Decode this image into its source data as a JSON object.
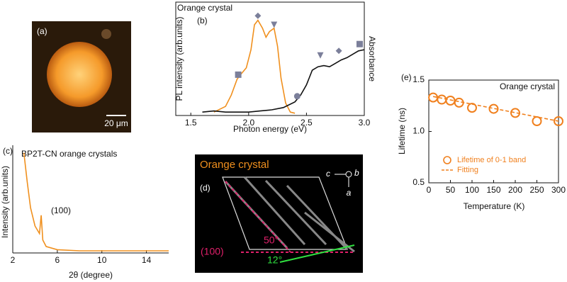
{
  "images": {
    "a": {
      "label": "(a)",
      "scale_bar": "20 μm"
    },
    "d": {
      "label": "(d)",
      "title": "Orange crystal",
      "axis_c": "c",
      "axis_b": "b",
      "axis_a": "a",
      "plane": "(100)",
      "angle_1": "50°",
      "angle_2": "12°"
    }
  },
  "chart_data": [
    {
      "type": "line",
      "panel_label": "(b)",
      "note": "Orange crystal",
      "x_label": "Photon energy (eV)",
      "y_label": "PL intensity (arb.units)",
      "y2_label": "Absorbance",
      "xlim": [
        1.37,
        3.0
      ],
      "xticks": [
        1.5,
        {
          "value": 2,
          "label": "2.0"
        },
        2.5,
        {
          "value": 3,
          "label": "3.0"
        }
      ],
      "ylim": [
        0,
        1
      ],
      "y2lim": [
        0,
        1
      ],
      "box": true,
      "series": [
        {
          "color": "#f0901e",
          "style": "line",
          "x": [
            1.7,
            1.8,
            1.85,
            1.9,
            1.93,
            1.98,
            2.02,
            2.05,
            2.08,
            2.12,
            2.15,
            2.18,
            2.22,
            2.25,
            2.28,
            2.32,
            2.36,
            2.4
          ],
          "values": [
            0.03,
            0.08,
            0.18,
            0.32,
            0.36,
            0.42,
            0.58,
            0.8,
            0.84,
            0.77,
            0.69,
            0.74,
            0.77,
            0.61,
            0.33,
            0.11,
            0.03,
            0.02
          ]
        },
        {
          "color": "#111111",
          "style": "line",
          "axis": "y2",
          "x": [
            1.6,
            1.7,
            1.8,
            1.9,
            2.0,
            2.1,
            2.2,
            2.3,
            2.4,
            2.45,
            2.5,
            2.55,
            2.6,
            2.65,
            2.7,
            2.75,
            2.8,
            2.85,
            2.9,
            2.95,
            3.0
          ],
          "values": [
            0.03,
            0.04,
            0.03,
            0.03,
            0.03,
            0.04,
            0.05,
            0.07,
            0.12,
            0.18,
            0.27,
            0.4,
            0.43,
            0.44,
            0.43,
            0.46,
            0.49,
            0.51,
            0.54,
            0.57,
            0.58
          ]
        },
        {
          "color": "#7b7f9a",
          "style": "markers",
          "markers": [
            "square",
            "diamond",
            "triangle"
          ],
          "x": [
            1.91,
            2.08,
            2.22
          ],
          "values": [
            0.36,
            0.88,
            0.8
          ]
        },
        {
          "color": "#7b7f9a",
          "style": "markers",
          "axis": "y2",
          "markers": [
            "circle",
            "triangle",
            "diamond",
            "square"
          ],
          "x": [
            2.42,
            2.62,
            2.78,
            2.96
          ],
          "values": [
            0.17,
            0.53,
            0.57,
            0.63
          ]
        }
      ]
    },
    {
      "type": "line",
      "panel_label": "(c)",
      "note": "BP2T-CN orange crystals",
      "annotations": [
        "(100)"
      ],
      "x_label": "2θ (degree)",
      "y_label": "Intensity (arb.units)",
      "xlim": [
        2,
        16
      ],
      "xticks": [
        2,
        6,
        10,
        14
      ],
      "ylim": [
        0,
        1
      ],
      "box": false,
      "series": [
        {
          "color": "#f0901e",
          "style": "line",
          "x": [
            3.0,
            3.3,
            3.6,
            4.0,
            4.4,
            4.55,
            4.7,
            5.0,
            6,
            8,
            10,
            12,
            14,
            16
          ],
          "values": [
            0.93,
            0.66,
            0.42,
            0.25,
            0.18,
            0.35,
            0.12,
            0.06,
            0.03,
            0.02,
            0.02,
            0.02,
            0.02,
            0.02
          ]
        }
      ]
    },
    {
      "type": "scatter",
      "panel_label": "(e)",
      "note": "Orange crystal",
      "x_label": "Temperature (K)",
      "y_label": "Lifetime (ns)",
      "xlim": [
        0,
        300
      ],
      "xticks": [
        0,
        50,
        100,
        150,
        200,
        250,
        300
      ],
      "ylim": [
        0.5,
        1.5
      ],
      "yticks": [
        0.5,
        {
          "value": 1,
          "label": "1.0"
        },
        1.5
      ],
      "box": true,
      "legend": "lower right",
      "series": [
        {
          "name": "Lifetime of 0-1 band",
          "color": "#f0801e",
          "style": "markers",
          "markers": [
            "open-circle"
          ],
          "x": [
            10,
            30,
            50,
            70,
            100,
            150,
            200,
            250,
            300
          ],
          "values": [
            1.33,
            1.31,
            1.3,
            1.28,
            1.23,
            1.22,
            1.18,
            1.1,
            1.1
          ]
        },
        {
          "name": "Fitting",
          "color": "#f0801e",
          "style": "dashed",
          "x": [
            10,
            300
          ],
          "values": [
            1.34,
            1.1
          ]
        }
      ]
    }
  ]
}
